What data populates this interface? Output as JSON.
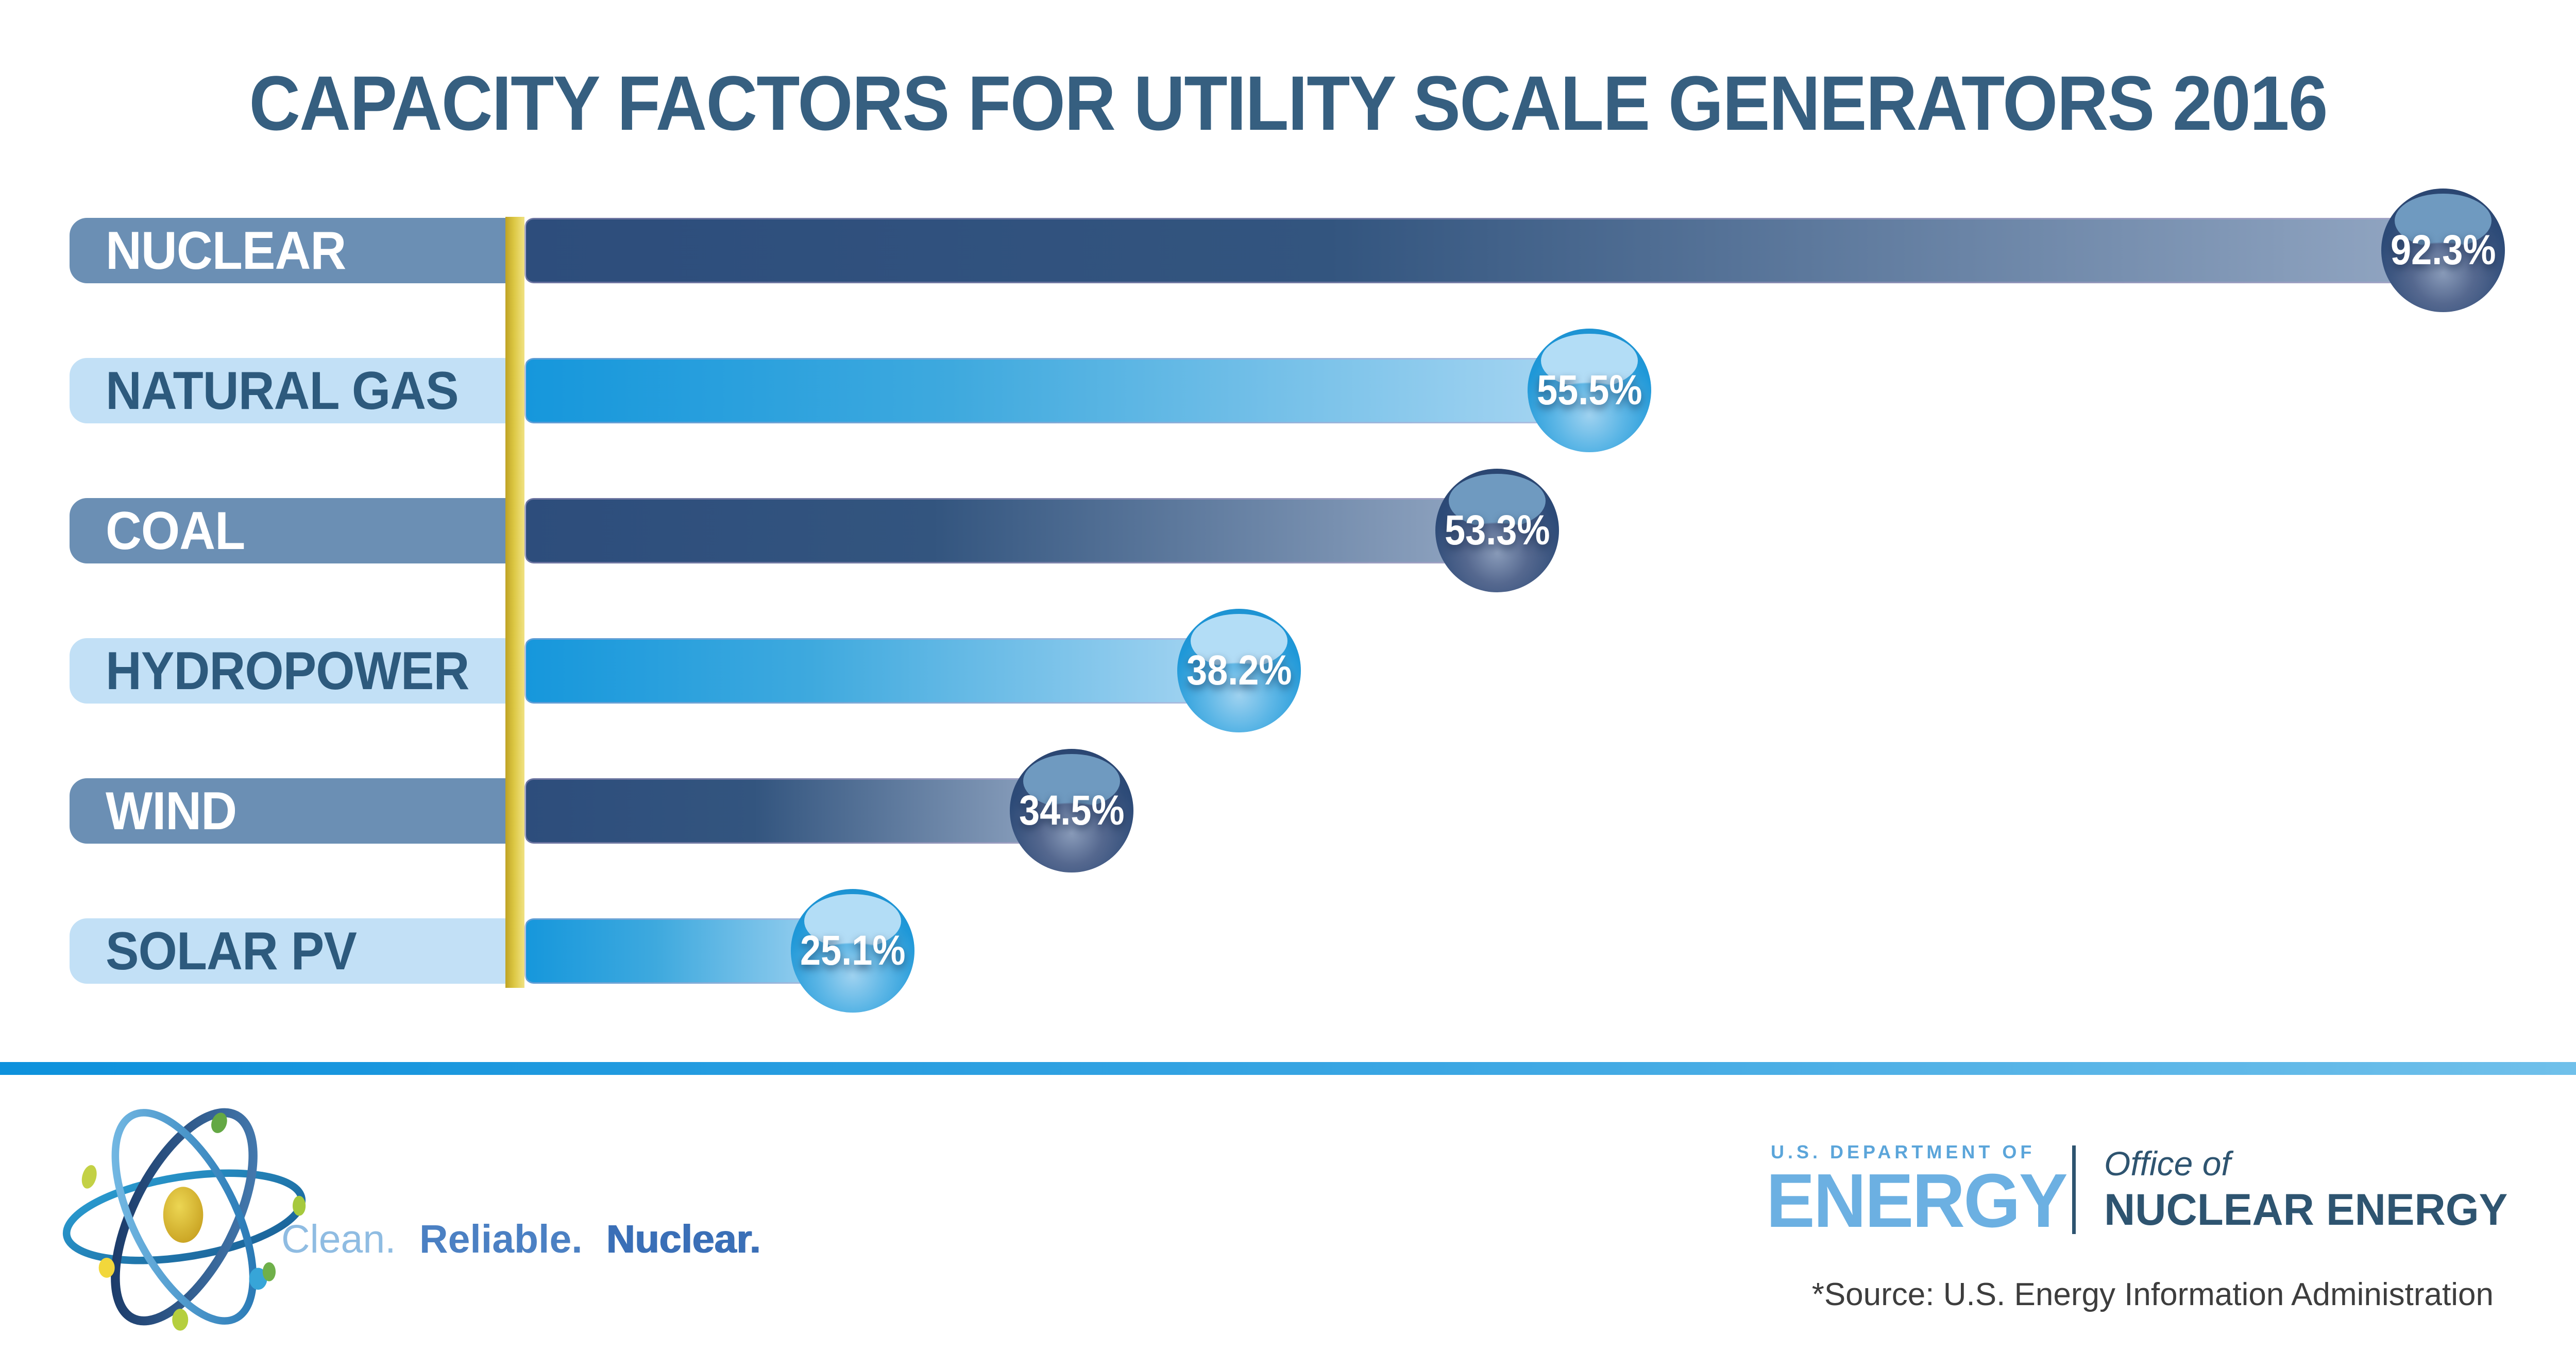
{
  "title": "CAPACITY FACTORS FOR UTILITY SCALE GENERATORS 2016",
  "chart_data": {
    "type": "bar",
    "orientation": "horizontal",
    "title": "CAPACITY FACTORS FOR UTILITY SCALE GENERATORS 2016",
    "categories": [
      "NUCLEAR",
      "NATURAL GAS",
      "COAL",
      "HYDROPOWER",
      "WIND",
      "SOLAR PV"
    ],
    "values": [
      92.3,
      55.5,
      53.3,
      38.2,
      34.5,
      25.1
    ],
    "value_labels": [
      "92.3%",
      "55.5%",
      "53.3%",
      "38.2%",
      "34.5%",
      "25.1%"
    ],
    "unit": "%",
    "xlim": [
      0,
      100
    ],
    "grid": false,
    "legend": false,
    "axis_style": "yellow vertical baseline at zero",
    "bar_end_frac": [
      0.9484,
      0.617,
      0.5812,
      0.481,
      0.416,
      0.331
    ],
    "row_themes": [
      "navy",
      "blue",
      "navy",
      "blue",
      "navy",
      "blue"
    ]
  },
  "rows": [
    {
      "label": "NUCLEAR",
      "value_label": "92.3%"
    },
    {
      "label": "NATURAL GAS",
      "value_label": "55.5%"
    },
    {
      "label": "COAL",
      "value_label": "53.3%"
    },
    {
      "label": "HYDROPOWER",
      "value_label": "38.2%"
    },
    {
      "label": "WIND",
      "value_label": "34.5%"
    },
    {
      "label": "SOLAR PV",
      "value_label": "25.1%"
    }
  ],
  "footer": {
    "tagline": {
      "clean": "Clean.",
      "reliable": "Reliable.",
      "nuclear": "Nuclear."
    },
    "doe": {
      "department": "U.S. DEPARTMENT OF",
      "energy": "ENERGY",
      "office_of": "Office of",
      "office_name": "NUCLEAR ENERGY"
    },
    "source": "*Source: U.S. Energy Information Administration"
  },
  "colors": {
    "title_text": "#365f80",
    "slate_plate": "#6b8fb4",
    "light_plate": "#c2e0f6",
    "navy_bar_start": "#2d4d7c",
    "navy_bar_end": "#93a7c3",
    "blue_bar_start": "#1697dc",
    "blue_bar_end": "#a9d6f2",
    "navy_sphere": "#2d4b78",
    "blue_sphere": "#1f98d8",
    "axis_line_yellow": "#dcc743",
    "divider_blue": "#0d91dc",
    "label_on_light": "#2d5a7d",
    "doe_light_blue": "#6cb0e2",
    "doe_dark": "#2e5470",
    "source_text": "#3d3d3d"
  }
}
